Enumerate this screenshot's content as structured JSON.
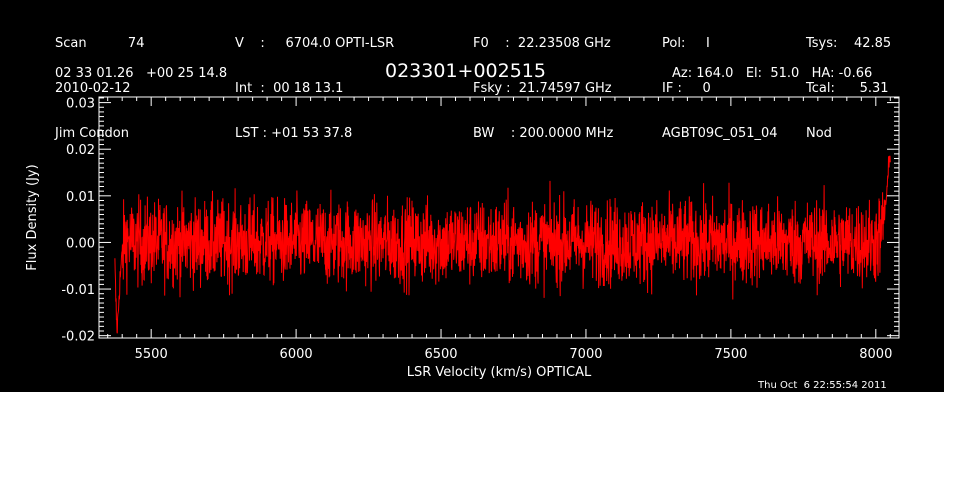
{
  "header": {
    "col1": [
      "Scan          74",
      "2010-02-12",
      "Jim Condon"
    ],
    "col2": [
      "V    :     6704.0 OPTI-LSR",
      "Int  :  00 18 13.1",
      "LST : +01 53 37.8"
    ],
    "col3": [
      "F0    :  22.23508 GHz",
      "Fsky :  21.74597 GHz",
      "BW    : 200.0000 MHz"
    ],
    "col4": [
      "Pol:     I",
      "IF :     0",
      "AGBT09C_051_04"
    ],
    "col5": [
      "Tsys:    42.85",
      "Tcal:      5.31",
      "Nod"
    ],
    "coords": "02 33 01.26   +00 25 14.8",
    "source": "023301+002515",
    "azel": "Az: 164.0   El:  51.0   HA: -0.66",
    "timestamp": "Thu Oct  6 22:55:54 2011"
  },
  "colors": {
    "background": "#000000",
    "foreground": "#ffffff",
    "trace": "#ff0000"
  },
  "chart_data": {
    "type": "line",
    "title": "023301+002515",
    "xlabel": "LSR Velocity (km/s) OPTICAL",
    "ylabel": "Flux Density (Jy)",
    "xlim": [
      5320,
      8080
    ],
    "ylim": [
      -0.0205,
      0.0312
    ],
    "xticks": [
      5500,
      6000,
      6500,
      7000,
      7500,
      8000
    ],
    "xtick_labels": [
      "5500",
      "6000",
      "6500",
      "7000",
      "7500",
      "8000"
    ],
    "yticks": [
      -0.02,
      -0.01,
      0.0,
      0.01,
      0.02,
      0.03
    ],
    "ytick_labels": [
      "-0.02",
      "-0.01",
      "0.00",
      "0.01",
      "0.02",
      "0.03"
    ],
    "series": [
      {
        "x": [
          5375,
          5378,
          5382,
          5386,
          5390,
          5395,
          5400,
          5410,
          5430,
          5460,
          5500,
          5550,
          5600,
          5700,
          5800,
          5900,
          6000,
          6100,
          6200,
          6300,
          6400,
          6500,
          6600,
          6700,
          6800,
          6900,
          7000,
          7100,
          7200,
          7300,
          7400,
          7500,
          7600,
          7700,
          7800,
          7900,
          7950,
          8000,
          8020,
          8030,
          8040,
          8045,
          8050
        ],
        "y": [
          -0.005,
          -0.012,
          -0.019,
          -0.016,
          -0.01,
          -0.006,
          -0.003,
          0.001,
          0.0,
          0.0,
          0.0,
          0.0,
          0.0,
          0.0,
          0.0,
          0.0,
          0.0,
          0.0,
          0.0,
          0.0,
          0.0,
          0.0,
          0.0,
          0.0,
          0.0,
          0.0,
          0.0,
          0.0,
          0.0,
          0.0,
          0.0,
          0.0,
          0.0,
          0.0,
          0.0,
          0.0,
          0.0,
          0.0,
          0.002,
          0.006,
          0.012,
          0.016,
          0.02
        ],
        "noise_rms": 0.0045
      }
    ],
    "grid": false,
    "legend": "none"
  }
}
